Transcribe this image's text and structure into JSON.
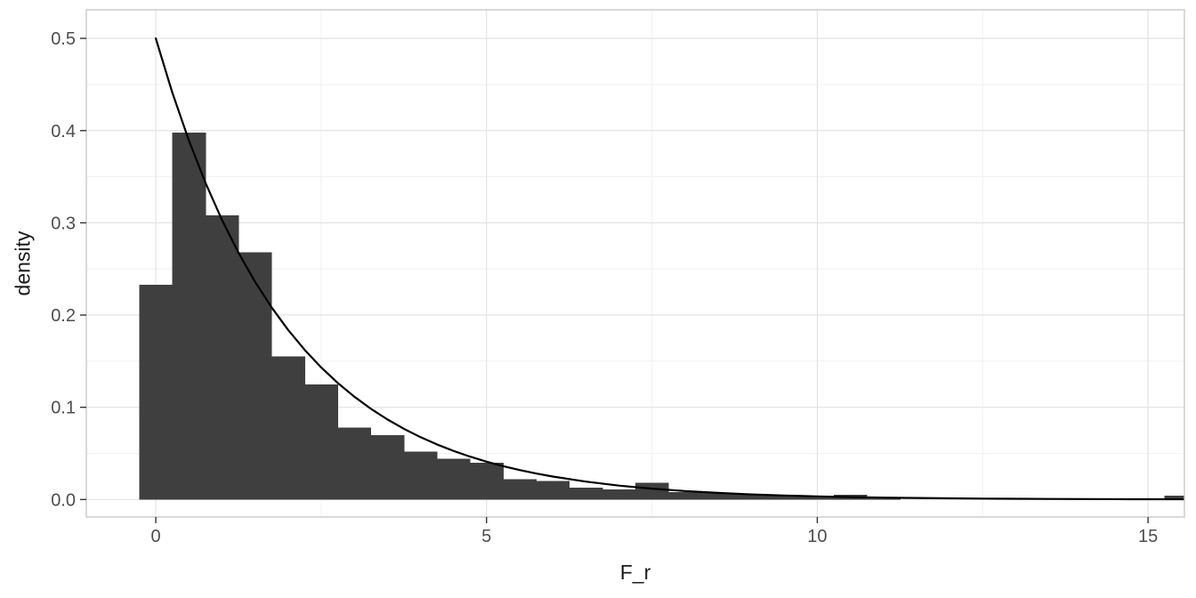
{
  "chart_data": {
    "type": "bar",
    "subtype": "histogram_with_density_curve_overlay",
    "title": "",
    "xlabel": "F_r",
    "ylabel": "density",
    "xlim": [
      -1.05,
      15.55
    ],
    "ylim": [
      -0.019,
      0.531
    ],
    "x_major_ticks": [
      0,
      5,
      10,
      15
    ],
    "x_tick_labels": [
      "0",
      "5",
      "10",
      "15"
    ],
    "x_minor_gridlines": [
      2.5,
      7.5,
      12.5
    ],
    "y_major_ticks": [
      0,
      0.1,
      0.2,
      0.3,
      0.4,
      0.5
    ],
    "y_tick_labels": [
      "0.0",
      "0.1",
      "0.2",
      "0.3",
      "0.4",
      "0.5"
    ],
    "y_minor_gridlines": [
      0.05,
      0.15,
      0.25,
      0.35,
      0.45
    ],
    "grid": "major and minor gridlines, light gray on white, full panel border",
    "legend_position": "none",
    "histogram": {
      "bin_width": 0.5,
      "bin_centers": [
        0,
        0.5,
        1.0,
        1.5,
        2.0,
        2.5,
        3.0,
        3.5,
        4.0,
        4.5,
        5.0,
        5.5,
        6.0,
        6.5,
        7.0,
        7.5,
        8.0,
        8.5,
        9.0,
        9.5,
        10.0,
        10.5,
        11.0,
        11.5,
        12.0,
        12.5,
        13.0,
        13.5,
        14.0,
        14.5,
        15.0,
        15.5
      ],
      "densities": [
        0.233,
        0.398,
        0.308,
        0.268,
        0.155,
        0.125,
        0.078,
        0.07,
        0.052,
        0.044,
        0.04,
        0.022,
        0.02,
        0.013,
        0.011,
        0.018,
        0.008,
        0.007,
        0.006,
        0.004,
        0.003,
        0.005,
        0.002,
        0,
        0,
        0,
        0,
        0,
        0,
        0,
        0,
        0.004
      ]
    },
    "curve": {
      "name": "density-curve",
      "x": [
        0,
        0.25,
        0.5,
        0.75,
        1,
        1.25,
        1.5,
        1.75,
        2,
        2.25,
        2.5,
        2.75,
        3,
        3.25,
        3.5,
        3.75,
        4,
        4.25,
        4.5,
        4.75,
        5,
        5.25,
        5.5,
        5.75,
        6,
        6.5,
        7,
        7.5,
        8,
        8.5,
        9,
        9.5,
        10,
        10.5,
        11,
        11.5,
        12,
        12.5,
        13,
        13.5,
        14,
        14.5,
        15,
        15.5,
        15.55
      ],
      "y": [
        0.5,
        0.44125,
        0.3894,
        0.34365,
        0.30327,
        0.26763,
        0.23618,
        0.20843,
        0.18394,
        0.16232,
        0.14325,
        0.12641,
        0.11157,
        0.09846,
        0.08689,
        0.07668,
        0.06767,
        0.05972,
        0.0527,
        0.04651,
        0.04104,
        0.03622,
        0.03196,
        0.02821,
        0.02489,
        0.01939,
        0.0151,
        0.01176,
        0.00916,
        0.00714,
        0.00556,
        0.00433,
        0.00337,
        0.00263,
        0.00204,
        0.00159,
        0.00124,
        0.00097,
        0.00075,
        0.00059,
        0.00046,
        0.00036,
        0.00028,
        0.00022,
        0.00021
      ],
      "color": "#000000",
      "stroke_width": 2.2
    },
    "colors": {
      "bar_fill": "#3F3F3F",
      "curve": "#000000",
      "grid_major": "#E3E3E3",
      "grid_minor": "#F1F1F1",
      "panel_border": "#C9C9C9",
      "background": "#FFFFFF",
      "tick_mark": "#333333",
      "tick_label": "#4D4D4D",
      "axis_title": "#1A1A1A"
    }
  }
}
